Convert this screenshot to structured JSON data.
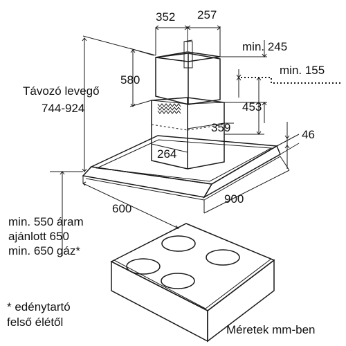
{
  "dimensions": {
    "chimney_depth": "352",
    "chimney_width": "257",
    "min_top_gap": "min. 245",
    "upper_chimney_height": "580",
    "min_offset": "min. 155",
    "exhaust_label": "Távozó levegő",
    "exhaust_range": "744-924",
    "lower_chimney_height": "453",
    "inner_width": "359",
    "canopy_height": "46",
    "inner_depth": "264",
    "hood_depth": "600",
    "hood_width": "900"
  },
  "clearance_note": {
    "line1": "min. 550 áram",
    "line2": "ajánlott 650",
    "line3": "min. 650 gáz*"
  },
  "footnote": {
    "line1": "* edénytartó",
    "line2": "felső élétől"
  },
  "units_note": "Méretek mm-ben",
  "colors": {
    "line": "#1a1a1a",
    "background": "#ffffff"
  }
}
